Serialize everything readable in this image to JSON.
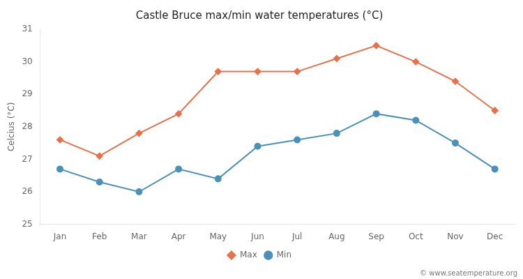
{
  "chart_data": {
    "type": "line",
    "title": "Castle Bruce max/min water temperatures (°C)",
    "y_label": "Celcius (°C)",
    "categories": [
      "Jan",
      "Feb",
      "Mar",
      "Apr",
      "May",
      "Jun",
      "Jul",
      "Aug",
      "Sep",
      "Oct",
      "Nov",
      "Dec"
    ],
    "series": [
      {
        "name": "Max",
        "color": "#e8714a",
        "marker": "diamond",
        "values": [
          27.6,
          27.1,
          27.8,
          28.4,
          29.7,
          29.7,
          29.7,
          30.1,
          30.5,
          30.0,
          29.4,
          28.5
        ]
      },
      {
        "name": "Min",
        "color": "#4a90b8",
        "marker": "circle",
        "values": [
          26.7,
          26.3,
          26.0,
          26.7,
          26.4,
          27.4,
          27.6,
          27.8,
          28.4,
          28.2,
          27.5,
          26.7
        ]
      }
    ],
    "ylim": [
      25,
      31
    ],
    "yticks": [
      25,
      26,
      27,
      28,
      29,
      30,
      31
    ],
    "grid": false,
    "legend": "bottom",
    "annotations": [
      "© www.seatemperature.org"
    ]
  }
}
